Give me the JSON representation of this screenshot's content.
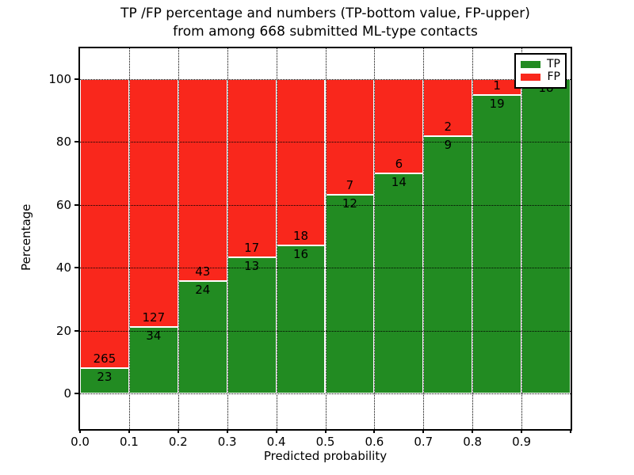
{
  "title": {
    "line1": "TP /FP percentage and numbers (TP-bottom value, FP-upper)",
    "line2": "from among 668 submitted ML-type contacts"
  },
  "chart_data": {
    "type": "bar",
    "stacked": true,
    "normalized": "each bar is percentage of bin total; bar labels show raw counts",
    "title": "TP /FP percentage and numbers (TP-bottom value, FP-upper) from among 668 submitted ML-type contacts",
    "xlabel": "Predicted probability",
    "ylabel": "Percentage",
    "total_contacts": 668,
    "bin_width": 0.1,
    "bins": [
      {
        "range": "0.0-0.1",
        "tp": 23,
        "fp": 265
      },
      {
        "range": "0.1-0.2",
        "tp": 34,
        "fp": 127
      },
      {
        "range": "0.2-0.3",
        "tp": 24,
        "fp": 43
      },
      {
        "range": "0.3-0.4",
        "tp": 13,
        "fp": 17
      },
      {
        "range": "0.4-0.5",
        "tp": 16,
        "fp": 18
      },
      {
        "range": "0.5-0.6",
        "tp": 12,
        "fp": 7
      },
      {
        "range": "0.6-0.7",
        "tp": 14,
        "fp": 6
      },
      {
        "range": "0.7-0.8",
        "tp": 9,
        "fp": 2
      },
      {
        "range": "0.8-0.9",
        "tp": 19,
        "fp": 1
      },
      {
        "range": "0.9-1.0",
        "tp": 18,
        "fp": 0
      }
    ],
    "series": [
      {
        "name": "TP",
        "color": "#228b22"
      },
      {
        "name": "FP",
        "color": "#f9271c"
      }
    ],
    "xticks": [
      "0.0",
      "0.1",
      "0.2",
      "0.3",
      "0.4",
      "0.5",
      "0.6",
      "0.7",
      "0.8",
      "0.9"
    ],
    "yticks": [
      0,
      20,
      40,
      60,
      80,
      100
    ],
    "xlim": [
      0.0,
      1.0
    ],
    "ylim": [
      -11,
      110
    ],
    "grid": true,
    "grid_style": "dotted",
    "legend_position": "upper right"
  }
}
